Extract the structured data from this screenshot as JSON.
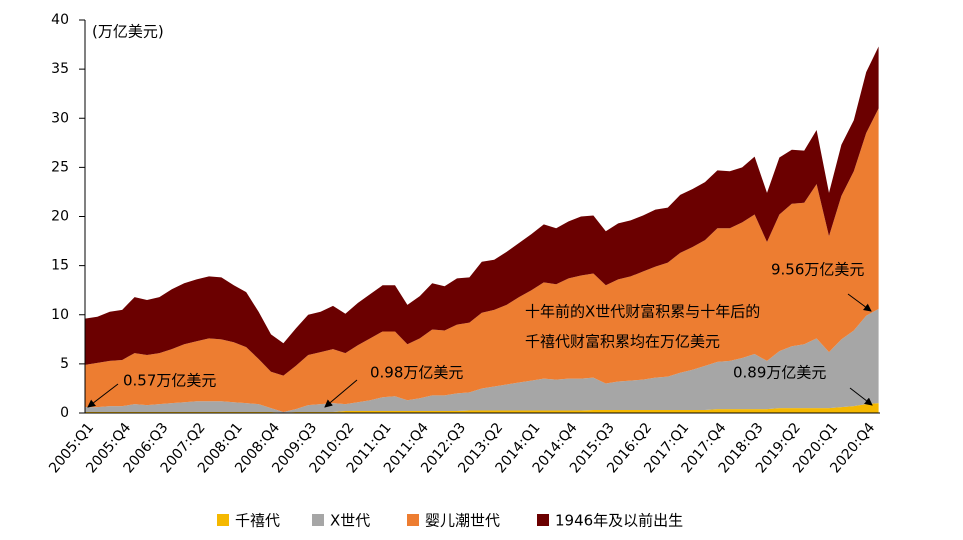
{
  "chart_data": {
    "type": "stacked_area",
    "unit_label": "(万亿美元)",
    "annotations": [
      "0.57万亿美元",
      "0.98万亿美元",
      "十年前的X世代财富积累与十年后的",
      "千禧代财富积累均在万亿美元",
      "9.56万亿美元",
      "0.89万亿美元"
    ],
    "categories": [
      "2005:Q1",
      null,
      null,
      "2005:Q4",
      null,
      null,
      "2006:Q3",
      null,
      null,
      "2007:Q2",
      null,
      null,
      "2008:Q1",
      null,
      null,
      "2008:Q4",
      null,
      null,
      "2009:Q3",
      null,
      null,
      "2010:Q2",
      null,
      null,
      "2011:Q1",
      null,
      null,
      "2011:Q4",
      null,
      null,
      "2012:Q3",
      null,
      null,
      "2013:Q2",
      null,
      null,
      "2014:Q1",
      null,
      null,
      "2014:Q4",
      null,
      null,
      "2015:Q3",
      null,
      null,
      "2016:Q2",
      null,
      null,
      "2017:Q1",
      null,
      null,
      "2017:Q4",
      null,
      null,
      "2018:Q3",
      null,
      null,
      "2019:Q2",
      null,
      null,
      "2020:Q1",
      null,
      null,
      "2020:Q4",
      null
    ],
    "series": [
      {
        "name": "千禧代",
        "color": "#f5b800",
        "values": [
          0.1,
          0.1,
          0.1,
          0.1,
          0.1,
          0.1,
          0.1,
          0.1,
          0.1,
          0.1,
          0.1,
          0.1,
          0.1,
          0.1,
          0.1,
          0.1,
          0.05,
          0.1,
          0.1,
          0.1,
          0.1,
          0.2,
          0.2,
          0.2,
          0.2,
          0.2,
          0.2,
          0.2,
          0.2,
          0.2,
          0.2,
          0.25,
          0.25,
          0.25,
          0.25,
          0.25,
          0.25,
          0.25,
          0.25,
          0.25,
          0.25,
          0.3,
          0.3,
          0.3,
          0.3,
          0.3,
          0.3,
          0.3,
          0.3,
          0.3,
          0.3,
          0.4,
          0.4,
          0.4,
          0.4,
          0.4,
          0.5,
          0.5,
          0.5,
          0.5,
          0.5,
          0.6,
          0.7,
          0.9,
          1.0
        ]
      },
      {
        "name": "X世代",
        "color": "#a6a6a6",
        "values": [
          0.5,
          0.5,
          0.6,
          0.6,
          0.8,
          0.7,
          0.8,
          0.9,
          1.0,
          1.1,
          1.1,
          1.1,
          1.0,
          0.9,
          0.8,
          0.4,
          0.05,
          0.3,
          0.7,
          0.8,
          0.9,
          0.7,
          0.9,
          1.1,
          1.4,
          1.5,
          1.1,
          1.3,
          1.6,
          1.6,
          1.8,
          1.85,
          2.25,
          2.45,
          2.65,
          2.85,
          3.05,
          3.25,
          3.15,
          3.25,
          3.25,
          3.3,
          2.7,
          2.9,
          3.0,
          3.1,
          3.3,
          3.4,
          3.8,
          4.1,
          4.5,
          4.8,
          4.9,
          5.2,
          5.6,
          4.9,
          5.8,
          6.3,
          6.5,
          7.1,
          5.7,
          6.9,
          7.7,
          9.0,
          9.6
        ]
      },
      {
        "name": "婴儿潮世代",
        "color": "#ed7d31",
        "values": [
          4.3,
          4.5,
          4.6,
          4.7,
          5.2,
          5.1,
          5.2,
          5.5,
          5.9,
          6.1,
          6.4,
          6.3,
          6.1,
          5.7,
          4.6,
          3.7,
          3.7,
          4.4,
          5.1,
          5.3,
          5.5,
          5.2,
          5.8,
          6.3,
          6.7,
          6.6,
          5.7,
          6.1,
          6.7,
          6.6,
          7.0,
          7.1,
          7.7,
          7.8,
          8.1,
          8.7,
          9.2,
          9.8,
          9.7,
          10.2,
          10.5,
          10.6,
          10.0,
          10.4,
          10.6,
          11.0,
          11.3,
          11.6,
          12.2,
          12.5,
          12.8,
          13.6,
          13.5,
          13.8,
          14.2,
          12.1,
          13.9,
          14.5,
          14.4,
          15.7,
          11.8,
          14.6,
          16.2,
          18.6,
          20.4
        ]
      },
      {
        "name": "1946年及以前出生",
        "color": "#6b0000",
        "values": [
          4.7,
          4.7,
          5.0,
          5.1,
          5.7,
          5.6,
          5.7,
          6.1,
          6.2,
          6.3,
          6.3,
          6.3,
          5.8,
          5.6,
          4.8,
          3.8,
          3.3,
          3.8,
          4.1,
          4.1,
          4.4,
          4.0,
          4.3,
          4.5,
          4.7,
          4.7,
          4.0,
          4.3,
          4.7,
          4.5,
          4.7,
          4.6,
          5.2,
          5.1,
          5.4,
          5.5,
          5.7,
          5.9,
          5.7,
          5.8,
          6.0,
          5.9,
          5.5,
          5.7,
          5.7,
          5.7,
          5.8,
          5.6,
          5.9,
          5.9,
          5.9,
          5.9,
          5.8,
          5.6,
          5.9,
          5.0,
          5.8,
          5.5,
          5.3,
          5.5,
          4.4,
          5.2,
          5.2,
          6.2,
          6.3
        ]
      }
    ],
    "ylim": [
      0,
      40
    ],
    "yticks": [
      0,
      5,
      10,
      15,
      20,
      25,
      30,
      35,
      40
    ],
    "grid": false,
    "legend": "bottom"
  }
}
